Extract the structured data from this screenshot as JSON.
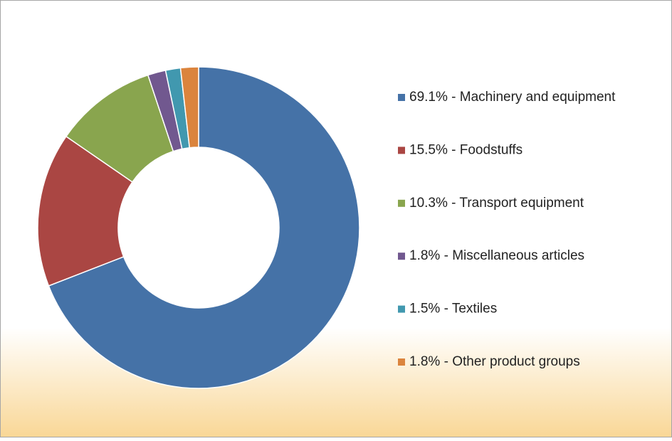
{
  "chart_data": {
    "type": "donut",
    "categories": [
      "69.1% - Machinery and equipment",
      "15.5% - Foodstuffs",
      "10.3% - Transport equipment",
      " 1.8% - Miscellaneous articles",
      " 1.5% - Textiles",
      " 1.8% - Other product groups"
    ],
    "values": [
      69.1,
      15.5,
      10.3,
      1.8,
      1.5,
      1.8
    ],
    "colors": [
      "#4572a7",
      "#aa4643",
      "#89a54e",
      "#71588f",
      "#4198af",
      "#db843d"
    ],
    "legend": "right"
  }
}
